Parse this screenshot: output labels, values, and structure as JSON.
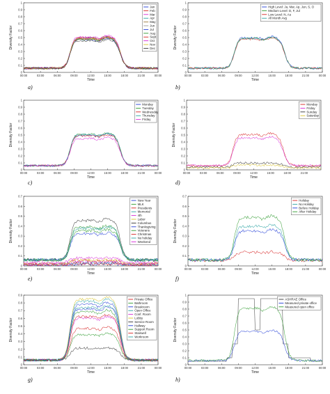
{
  "chart_data": [
    {
      "id": "a",
      "panel_label": "a)",
      "type": "line",
      "xlabel": "Time",
      "ylabel": "Diversity Factor",
      "xticks": [
        "00:00",
        "03:00",
        "06:00",
        "09:00",
        "12:00",
        "15:00",
        "18:00",
        "21:00",
        "00:00"
      ],
      "ylim": [
        0,
        1
      ],
      "yticks": [
        "0",
        "0.1",
        "0.2",
        "0.3",
        "0.4",
        "0.5",
        "0.6",
        "0.7",
        "0.8",
        "0.9",
        "1"
      ],
      "legend_position": "top-right",
      "series": [
        {
          "name": "Jan",
          "color": "#1f3bd6",
          "level": 0.5
        },
        {
          "name": "Feb",
          "color": "#d62020",
          "level": 0.51
        },
        {
          "name": "Mar",
          "color": "#d628d6",
          "level": 0.52
        },
        {
          "name": "Apr",
          "color": "#2aa2a2",
          "level": 0.5
        },
        {
          "name": "May",
          "color": "#9c7a3c",
          "level": 0.49
        },
        {
          "name": "Jun",
          "color": "#999999",
          "level": 0.5
        },
        {
          "name": "Jul",
          "color": "#1f3bd6",
          "level": 0.48
        },
        {
          "name": "Aug",
          "color": "#2e9a2e",
          "level": 0.49
        },
        {
          "name": "Sept",
          "color": "#d62020",
          "level": 0.5
        },
        {
          "name": "Oct",
          "color": "#d628d6",
          "level": 0.51
        },
        {
          "name": "Nov",
          "color": "#d8c22a",
          "level": 0.5
        },
        {
          "name": "Dec",
          "color": "#333333",
          "level": 0.47
        }
      ]
    },
    {
      "id": "b",
      "panel_label": "b)",
      "type": "line",
      "xlabel": "Time",
      "ylabel": "Diversity Factor",
      "xticks": [
        "00:00",
        "03:00",
        "06:00",
        "09:00",
        "12:00",
        "15:00",
        "18:00",
        "21:00",
        "00:00"
      ],
      "ylim": [
        0,
        1
      ],
      "yticks": [
        "0",
        "0.1",
        "0.2",
        "0.3",
        "0.4",
        "0.5",
        "0.6",
        "0.7",
        "0.8",
        "0.9",
        "1"
      ],
      "legend_position": "top-right",
      "series": [
        {
          "name": "High Level: Ja, Mar, Ap, Jun, S, O",
          "color": "#1f3bd6",
          "level": 0.51
        },
        {
          "name": "Medium Level: D, F, Jul",
          "color": "#2e9a2e",
          "level": 0.5
        },
        {
          "name": "Low Level: N, Au",
          "color": "#d62020",
          "level": 0.49
        },
        {
          "name": "All Month Avg",
          "color": "#2aa2a2",
          "level": 0.5
        }
      ]
    },
    {
      "id": "c",
      "panel_label": "c)",
      "type": "line",
      "xlabel": "Time",
      "ylabel": "Diversity Factor",
      "xticks": [
        "00:00",
        "03:00",
        "06:00",
        "09:00",
        "12:00",
        "15:00",
        "18:00",
        "21:00",
        "00:00"
      ],
      "ylim": [
        0,
        1
      ],
      "yticks": [
        "0",
        "0.1",
        "0.2",
        "0.3",
        "0.4",
        "0.5",
        "0.6",
        "0.7",
        "0.8",
        "0.9",
        "1"
      ],
      "legend_position": "top-right",
      "series": [
        {
          "name": "Monday",
          "color": "#1f3bd6",
          "level": 0.51
        },
        {
          "name": "Tuesday",
          "color": "#2e9a2e",
          "level": 0.52
        },
        {
          "name": "Wednesday",
          "color": "#d62020",
          "level": 0.5
        },
        {
          "name": "Thursday",
          "color": "#2aa2a2",
          "level": 0.52
        },
        {
          "name": "Friday",
          "color": "#d628d6",
          "level": 0.46
        }
      ]
    },
    {
      "id": "d",
      "panel_label": "d)",
      "type": "line",
      "xlabel": "Time",
      "ylabel": "Diversity Factor",
      "xticks": [
        "00:00",
        "03:00",
        "06:00",
        "09:00",
        "12:00",
        "15:00",
        "18:00",
        "21:00"
      ],
      "ylim": [
        0,
        1
      ],
      "yticks": [
        "0",
        "0.1",
        "0.2",
        "0.3",
        "0.4",
        "0.5",
        "0.6",
        "0.7",
        "0.8",
        "0.9",
        "1"
      ],
      "legend_position": "top-right",
      "series": [
        {
          "name": "Monday",
          "color": "#d62020",
          "level": 0.52
        },
        {
          "name": "Friday",
          "color": "#d628d6",
          "level": 0.47
        },
        {
          "name": "Sunday",
          "color": "#333333",
          "level": 0.1
        },
        {
          "name": "Saturday",
          "color": "#d8c22a",
          "level": 0.07
        }
      ]
    },
    {
      "id": "e",
      "panel_label": "e)",
      "type": "line",
      "xlabel": "Time",
      "ylabel": "Diversity Factor",
      "xticks": [
        "00:00",
        "03:00",
        "06:00",
        "09:00",
        "12:00",
        "15:00",
        "18:00",
        "21:00",
        "00:00"
      ],
      "ylim": [
        0,
        0.7
      ],
      "yticks": [
        "0",
        "0.1",
        "0.2",
        "0.3",
        "0.4",
        "0.5",
        "0.6",
        "0.7"
      ],
      "legend_position": "top-right",
      "series": [
        {
          "name": "New Year",
          "color": "#1f3bd6",
          "level": 0.02
        },
        {
          "name": "MLK",
          "color": "#2e9a2e",
          "level": 0.4
        },
        {
          "name": "Presidents",
          "color": "#d62020",
          "level": 0.05
        },
        {
          "name": "Memorial",
          "color": "#2aa2a2",
          "level": 0.03
        },
        {
          "name": "4th",
          "color": "#d628d6",
          "level": 0.04
        },
        {
          "name": "Labor",
          "color": "#d8c22a",
          "level": 0.06
        },
        {
          "name": "Columbus",
          "color": "#333333",
          "level": 0.47
        },
        {
          "name": "Thanksgiving",
          "color": "#1f3bd6",
          "level": 0.33
        },
        {
          "name": "Veterans",
          "color": "#2e9a2e",
          "level": 0.36
        },
        {
          "name": "Christmas",
          "color": "#d62020",
          "level": 0.02
        },
        {
          "name": "No holiday",
          "color": "#2aa2a2",
          "level": 0.39
        },
        {
          "name": "Weekend",
          "color": "#d628d6",
          "level": 0.08
        }
      ]
    },
    {
      "id": "f",
      "panel_label": "f)",
      "type": "line",
      "xlabel": "Time",
      "ylabel": "Diversity Factor",
      "xticks": [
        "00:00",
        "03:00",
        "06:00",
        "09:00",
        "12:00",
        "15:00",
        "18:00",
        "21:00",
        "00:00"
      ],
      "ylim": [
        0,
        0.7
      ],
      "yticks": [
        "0",
        "0.1",
        "0.2",
        "0.3",
        "0.4",
        "0.5",
        "0.6",
        "0.7"
      ],
      "legend_position": "top-right",
      "series": [
        {
          "name": "Holiday",
          "color": "#d62020",
          "level": 0.14
        },
        {
          "name": "No Holiday",
          "color": "#2aa2a2",
          "level": 0.41
        },
        {
          "name": "Before Holiday",
          "color": "#1f3bd6",
          "level": 0.36
        },
        {
          "name": "After Holiday",
          "color": "#2e9a2e",
          "level": 0.5
        }
      ]
    },
    {
      "id": "g",
      "panel_label": "g)",
      "type": "line",
      "xlabel": "Time",
      "ylabel": "Diversity Factor",
      "xticks": [
        "00:00",
        "03:00",
        "06:00",
        "09:00",
        "12:00",
        "15:00",
        "18:00",
        "21:00",
        "00:00"
      ],
      "ylim": [
        0,
        0.9
      ],
      "yticks": [
        "0",
        "0.1",
        "0.2",
        "0.3",
        "0.4",
        "0.5",
        "0.6",
        "0.7",
        "0.8",
        "0.9"
      ],
      "legend_position": "top-right",
      "series": [
        {
          "name": "Private Office",
          "color": "#d62020",
          "level": 0.48
        },
        {
          "name": "Bathroom",
          "color": "#2e9a2e",
          "level": 0.7
        },
        {
          "name": "Breakroom",
          "color": "#1f3bd6",
          "level": 0.74
        },
        {
          "name": "Open Office",
          "color": "#2aa2a2",
          "level": 0.84
        },
        {
          "name": "Conf. Room",
          "color": "#d628d6",
          "level": 0.62
        },
        {
          "name": "Lobby",
          "color": "#d8c22a",
          "level": 0.87
        },
        {
          "name": "Service Room",
          "color": "#333333",
          "level": 0.22
        },
        {
          "name": "Hallway",
          "color": "#1f3bd6",
          "level": 0.8
        },
        {
          "name": "Support Room",
          "color": "#2e9a2e",
          "level": 0.4
        },
        {
          "name": "Stairwell",
          "color": "#d62020",
          "level": 0.64
        },
        {
          "name": "Workroom",
          "color": "#2aa2a2",
          "level": 0.76
        }
      ]
    },
    {
      "id": "h",
      "panel_label": "h)",
      "type": "line",
      "xlabel": "Time",
      "ylabel": "Diversity Factor",
      "xticks": [
        "00:00",
        "03:00",
        "06:00",
        "09:00",
        "12:00",
        "15:00",
        "18:00",
        "21:00",
        "00:00"
      ],
      "ylim": [
        0,
        1
      ],
      "yticks": [
        "0",
        "0.1",
        "0.2",
        "0.3",
        "0.4",
        "0.5",
        "0.6",
        "0.7",
        "0.8",
        "0.9",
        "1"
      ],
      "legend_position": "top-right",
      "series": [
        {
          "name": "ASHRAE Office",
          "color": "#333333",
          "level": 0.95,
          "shape": "ashrae"
        },
        {
          "name": "Measured private office",
          "color": "#1f3bd6",
          "level": 0.49
        },
        {
          "name": "Measured open office",
          "color": "#2e9a2e",
          "level": 0.83
        }
      ]
    }
  ]
}
